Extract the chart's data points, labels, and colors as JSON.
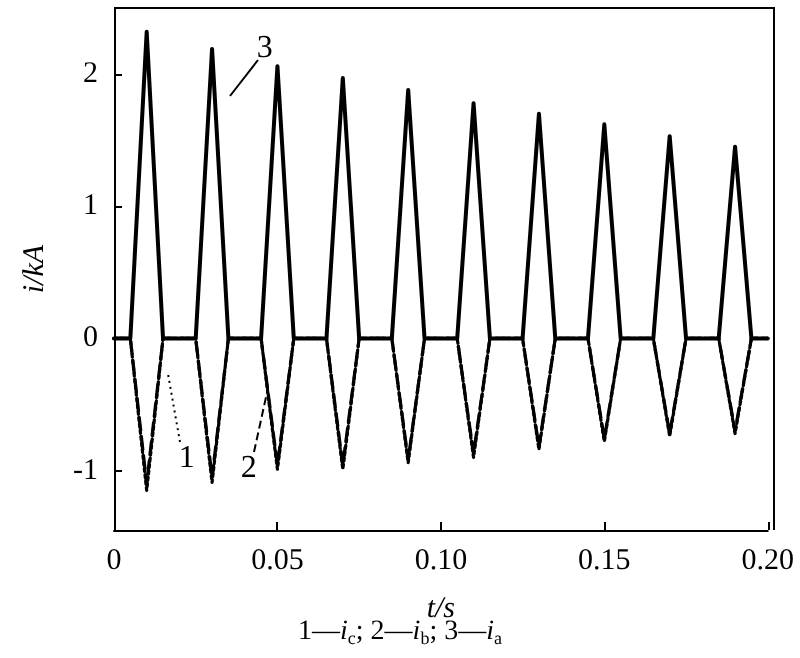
{
  "chart_data": {
    "type": "line",
    "xlabel": "t/s",
    "ylabel": "i/kA",
    "x": [
      0,
      0.005,
      0.0075,
      0.01,
      0.0125,
      0.015,
      0.025,
      0.0275,
      0.03,
      0.0325,
      0.035,
      0.045,
      0.0475,
      0.05,
      0.0525,
      0.055,
      0.065,
      0.0675,
      0.07,
      0.0725,
      0.075,
      0.085,
      0.0875,
      0.09,
      0.0925,
      0.095,
      0.105,
      0.1075,
      0.11,
      0.1125,
      0.115,
      0.125,
      0.1275,
      0.13,
      0.1325,
      0.135,
      0.145,
      0.1475,
      0.15,
      0.1525,
      0.155,
      0.165,
      0.1675,
      0.17,
      0.1725,
      0.175,
      0.185,
      0.1875,
      0.19,
      0.1925,
      0.195,
      0.2
    ],
    "series": [
      {
        "name": "1",
        "color": "#000000",
        "line_style": "dotted",
        "values": [
          0,
          0,
          -0.58,
          -1.15,
          -0.58,
          0,
          0,
          -0.55,
          -1.09,
          -0.55,
          0,
          0,
          -0.5,
          -0.99,
          -0.5,
          0,
          0,
          -0.5,
          -0.99,
          -0.5,
          0,
          0,
          -0.47,
          -0.94,
          -0.47,
          0,
          0,
          -0.45,
          -0.9,
          -0.45,
          0,
          0,
          -0.42,
          -0.84,
          -0.42,
          0,
          0,
          -0.39,
          -0.78,
          -0.39,
          0,
          0,
          -0.37,
          -0.74,
          -0.37,
          0,
          0,
          -0.36,
          -0.72,
          -0.36,
          0,
          0
        ]
      },
      {
        "name": "2",
        "color": "#000000",
        "line_style": "dashed",
        "values": [
          0,
          0,
          -0.55,
          -1.1,
          -0.55,
          0,
          0,
          -0.53,
          -1.05,
          -0.53,
          0,
          0,
          -0.48,
          -0.96,
          -0.48,
          0,
          0,
          -0.48,
          -0.96,
          -0.48,
          0,
          0,
          -0.46,
          -0.92,
          -0.46,
          0,
          0,
          -0.44,
          -0.87,
          -0.44,
          0,
          0,
          -0.41,
          -0.82,
          -0.41,
          0,
          0,
          -0.38,
          -0.76,
          -0.38,
          0,
          0,
          -0.36,
          -0.72,
          -0.36,
          0,
          0,
          -0.35,
          -0.7,
          -0.35,
          0,
          0
        ]
      },
      {
        "name": "3",
        "color": "#000000",
        "line_style": "solid",
        "values": [
          0,
          0,
          1.16,
          2.32,
          1.16,
          0,
          0,
          1.1,
          2.19,
          1.1,
          0,
          0,
          1.03,
          2.06,
          1.03,
          0,
          0,
          0.99,
          1.97,
          0.99,
          0,
          0,
          0.94,
          1.88,
          0.94,
          0,
          0,
          0.89,
          1.78,
          0.89,
          0,
          0,
          0.85,
          1.7,
          0.85,
          0,
          0,
          0.81,
          1.62,
          0.81,
          0,
          0,
          0.77,
          1.53,
          0.77,
          0,
          0,
          0.73,
          1.45,
          0.73,
          0,
          0
        ]
      }
    ],
    "xlim": [
      0,
      0.2
    ],
    "xticks": [
      0,
      {
        "value": 0.05,
        "label": "0.05"
      },
      {
        "value": 0.1,
        "label": "0.10"
      },
      {
        "value": 0.15,
        "label": "0.15"
      },
      {
        "value": 0.2,
        "label": "0.20"
      }
    ],
    "ylim": [
      -1.45,
      2.5
    ],
    "yticks": [
      -1,
      0,
      1,
      2
    ],
    "grid": false,
    "marker": "none",
    "legend": "bottom left",
    "annotations": [
      "1—i$_{c}$; 2—i$_{b}$; 3—i$_{a}$"
    ]
  }
}
